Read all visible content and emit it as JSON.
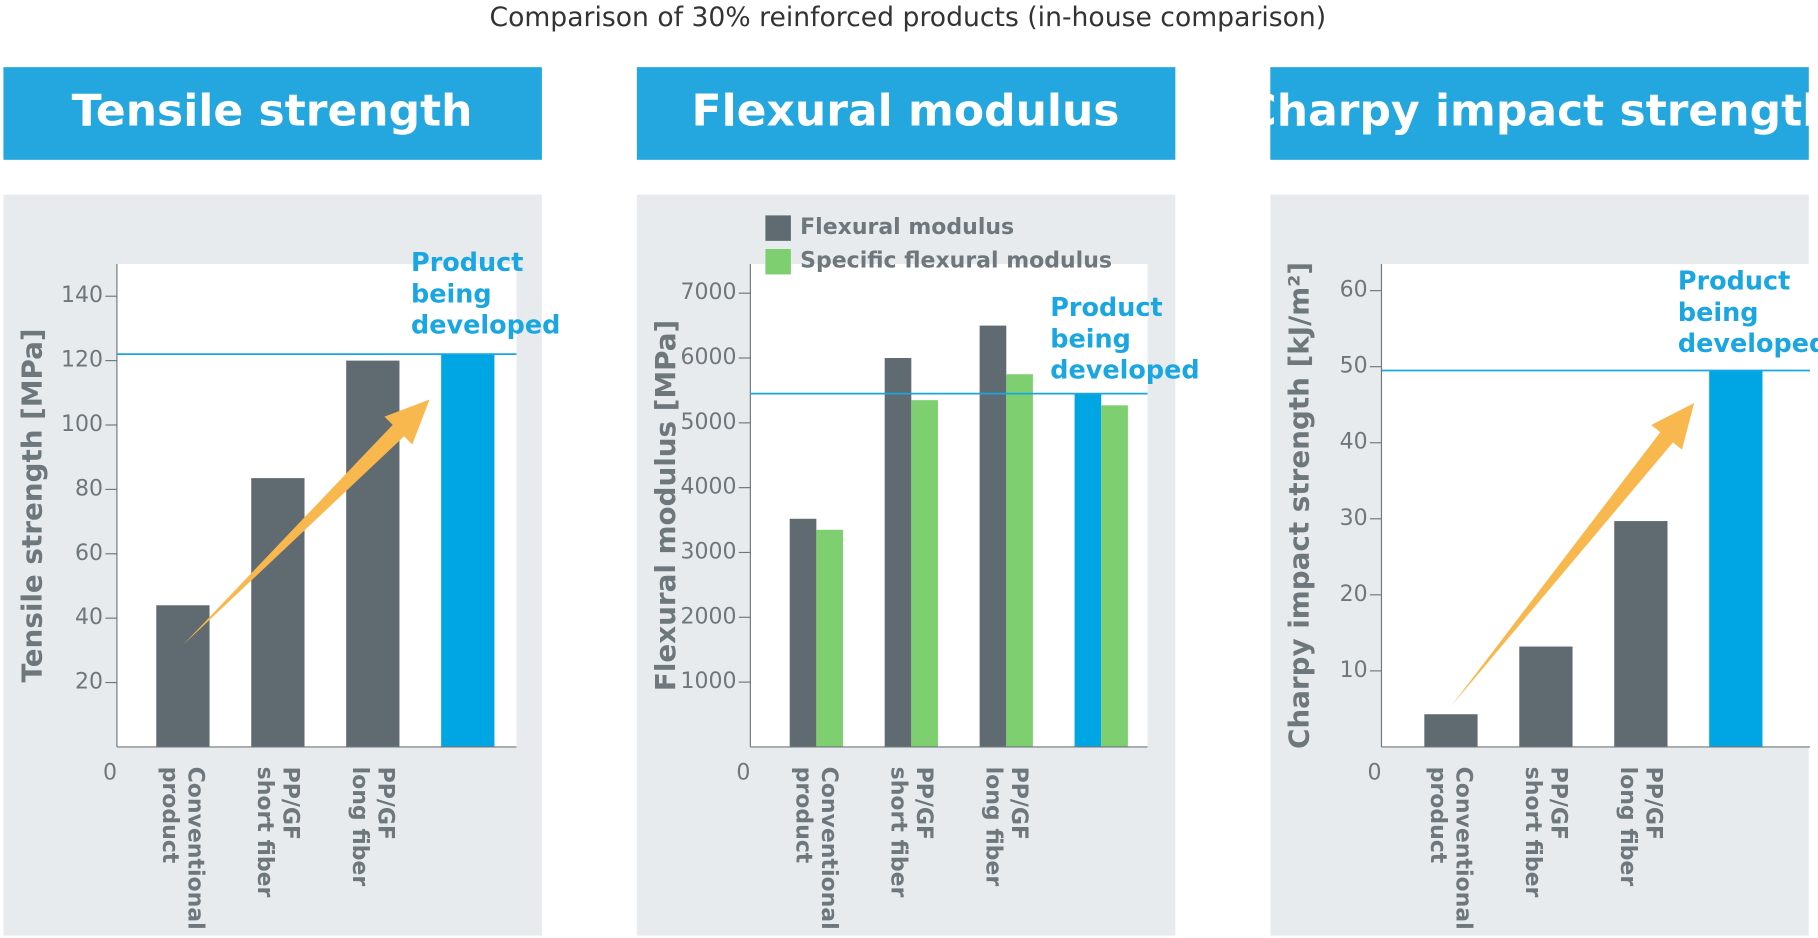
{
  "title": "Comparison of 30% reinforced products (in-house comparison)",
  "chart_data": [
    {
      "type": "bar",
      "title": "Tensile strength",
      "ylabel": "Tensile strength [MPa]",
      "categories": [
        "Conventional product",
        "PP/GF short fiber",
        "PP/GF long fiber",
        null
      ],
      "values": [
        44,
        83.5,
        120,
        122
      ],
      "color": "#5f6b70",
      "highlight_color": "#00a5e3",
      "reference_line": 122,
      "annotation": "Product being developed",
      "ylim": [
        0,
        150
      ],
      "yticks": [
        0,
        20,
        40,
        60,
        80,
        100,
        120,
        140
      ]
    },
    {
      "type": "grouped_bar",
      "title": "Flexural modulus",
      "ylabel": "Flexural modulus [MPa]",
      "categories": [
        "Conventional product",
        "PP/GF short fiber",
        "PP/GF long fiber",
        null
      ],
      "series": [
        {
          "name": "Flexural modulus",
          "color": "#5f6b70",
          "values": [
            3520,
            6000,
            6500,
            5450
          ]
        },
        {
          "name": "Specific flexural modulus",
          "color": "#7dcf6f",
          "values": [
            3350,
            5350,
            5750,
            5270
          ]
        }
      ],
      "highlight_color": "#00a5e3",
      "reference_line": 5450,
      "annotation": "Product being developed",
      "ylim": [
        0,
        7450
      ],
      "yticks": [
        0,
        1000,
        2000,
        3000,
        4000,
        5000,
        6000,
        7000
      ]
    },
    {
      "type": "bar",
      "title": "Charpy impact strength",
      "ylabel": "Charpy impact strength [kJ/m²]",
      "categories": [
        "Conventional product",
        "PP/GF short fiber",
        "PP/GF long fiber",
        null
      ],
      "values": [
        4.3,
        13.2,
        29.7,
        49.5
      ],
      "color": "#5f6b70",
      "highlight_color": "#00a5e3",
      "reference_line": 49.5,
      "annotation": "Product being developed",
      "ylim": [
        0,
        63.5
      ],
      "yticks": [
        0,
        10,
        20,
        30,
        40,
        50,
        60
      ]
    }
  ]
}
